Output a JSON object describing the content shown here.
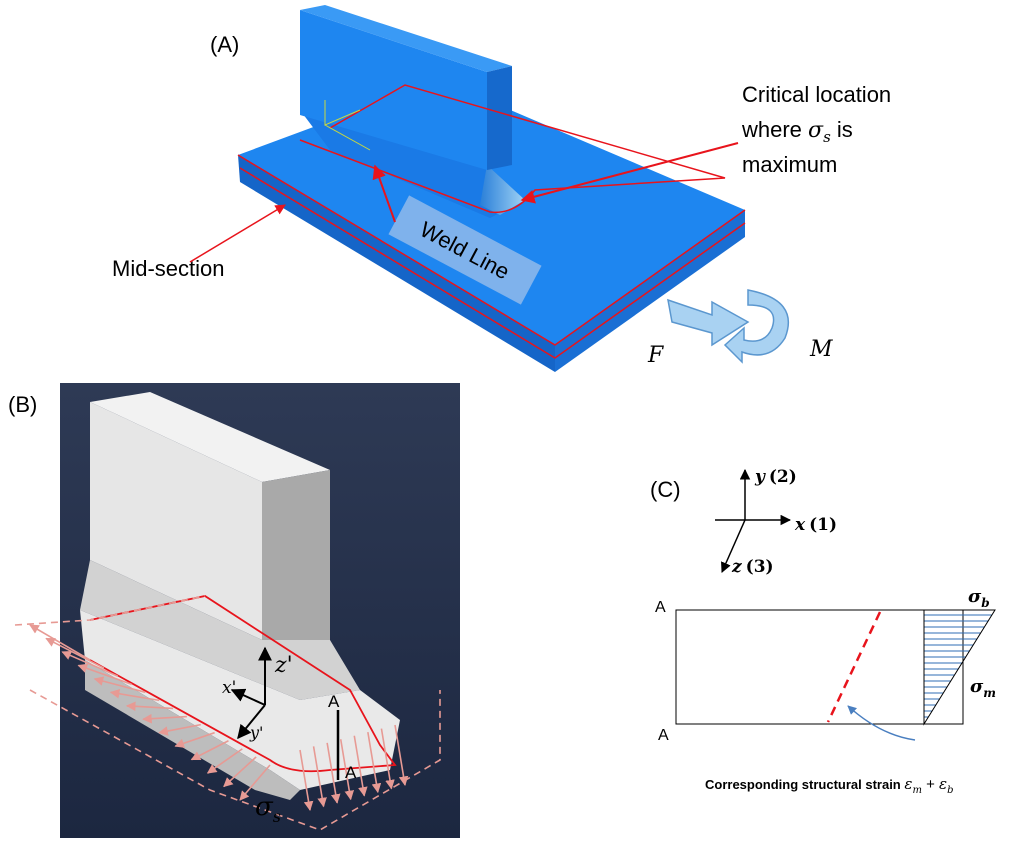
{
  "panel_a": {
    "label": "(A)",
    "critical_location": {
      "line1": "Critical location",
      "line2_pre": "where ",
      "line2_symbol": "σ",
      "line2_sub": "s",
      "line2_post": " is",
      "line3": "maximum"
    },
    "weld_line": "Weld Line",
    "mid_section": "Mid-section",
    "force": "F",
    "moment": "M"
  },
  "panel_b": {
    "label": "(B)",
    "axis_z": "z'",
    "axis_x": "x'",
    "axis_y": "y'",
    "section_top": "A",
    "section_bottom": "A",
    "stress_symbol": "σ",
    "stress_sub": "s"
  },
  "panel_c": {
    "label": "(C)",
    "axis_y": {
      "symbol": "y",
      "index": "(2)"
    },
    "axis_x": {
      "symbol": "x",
      "index": "(1)"
    },
    "axis_z": {
      "symbol": "z",
      "index": "(3)"
    },
    "corner_top": "A",
    "corner_bottom": "A",
    "bending_symbol": "σ",
    "bending_sub": "b",
    "membrane_symbol": "σ",
    "membrane_sub": "m",
    "caption": {
      "text": "Corresponding structural strain ",
      "eps1": "ε",
      "sub1": "m",
      "plus": " + ",
      "eps2": "ε",
      "sub2": "b"
    }
  }
}
